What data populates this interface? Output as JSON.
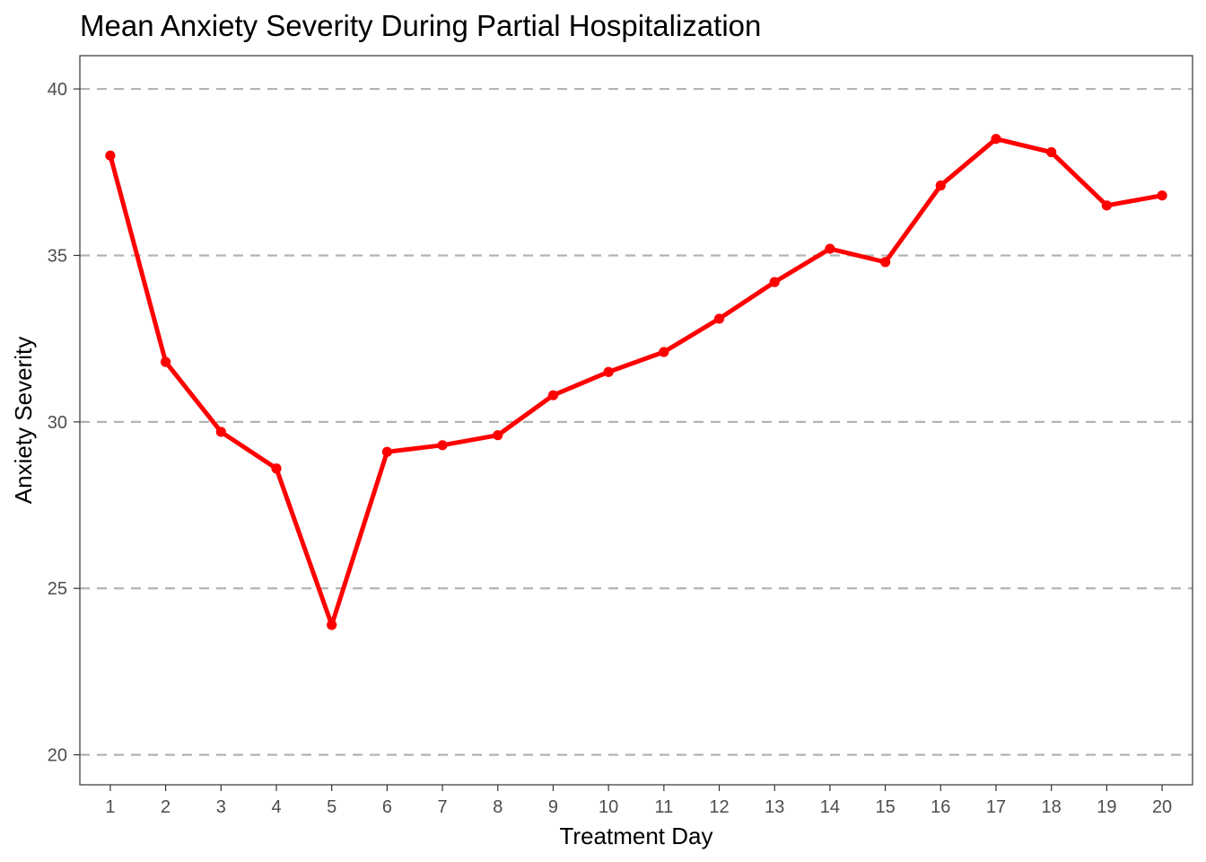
{
  "chart_data": {
    "type": "line",
    "title": "Mean Anxiety Severity During Partial Hospitalization",
    "xlabel": "Treatment Day",
    "ylabel": "Anxiety Severity",
    "x": [
      1,
      2,
      3,
      4,
      5,
      6,
      7,
      8,
      9,
      10,
      11,
      12,
      13,
      14,
      15,
      16,
      17,
      18,
      19,
      20
    ],
    "x_tick_labels": [
      "1",
      "2",
      "3",
      "4",
      "5",
      "6",
      "7",
      "8",
      "9",
      "10",
      "11",
      "12",
      "13",
      "14",
      "15",
      "16",
      "17",
      "18",
      "19",
      "20"
    ],
    "y_ticks": [
      20,
      25,
      30,
      35,
      40
    ],
    "y_tick_labels": [
      "20",
      "25",
      "30",
      "35",
      "40"
    ],
    "series": [
      {
        "values": [
          38.0,
          31.8,
          29.7,
          28.6,
          23.9,
          29.1,
          29.3,
          29.6,
          30.8,
          31.5,
          32.1,
          33.1,
          34.2,
          35.2,
          34.8,
          37.1,
          38.5,
          38.1,
          36.5,
          36.8
        ],
        "color": "#ff0000"
      }
    ],
    "xlim": [
      0.45,
      20.55
    ],
    "ylim": [
      19.1,
      41.0
    ],
    "grid": "horizontal dashed major gridlines",
    "legend": "none"
  }
}
